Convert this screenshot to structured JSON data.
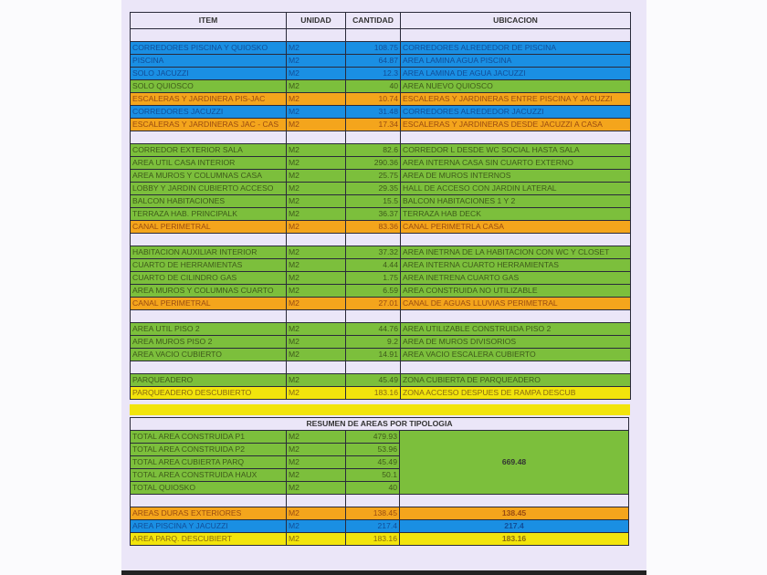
{
  "colors": {
    "blue": "#1a8fe3",
    "green": "#7cbf3c",
    "orange": "#f4a51c",
    "yellow": "#f2e40c"
  },
  "headers": {
    "item": "ITEM",
    "unidad": "UNIDAD",
    "cantidad": "CANTIDAD",
    "ubicacion": "UBICACION"
  },
  "rows": [
    {
      "color": "blank"
    },
    {
      "color": "blue",
      "item": "CORREDORES PISCINA Y QUIOSKO",
      "unidad": "M2",
      "cantidad": "108.75",
      "ubicacion": "CORREDORES ALREDEDOR DE PISCINA"
    },
    {
      "color": "blue",
      "item": "PISCINA",
      "unidad": "M2",
      "cantidad": "64.87",
      "ubicacion": "AREA LAMINA AGUA PISCINA"
    },
    {
      "color": "blue",
      "item": "SOLO JACUZZI",
      "unidad": "M2",
      "cantidad": "12.3",
      "ubicacion": "AREA LAMINA DE AGUA JACUZZI"
    },
    {
      "color": "green",
      "item": "SOLO QUIOSCO",
      "unidad": "M2",
      "cantidad": "40",
      "ubicacion": "AREA NUEVO QUIOSCO"
    },
    {
      "color": "orange",
      "item": "ESCALERAS Y JARDINERA PIS-JAC",
      "unidad": "M2",
      "cantidad": "10.74",
      "ubicacion": "ESCALERAS Y JARDINERAS ENTRE PISCINA Y JACUZZI"
    },
    {
      "color": "blue",
      "item": "CORREDORES JACUZZI",
      "unidad": "M2",
      "cantidad": "31.48",
      "ubicacion": "CORREDORES ALREDEDOR JACUZZI"
    },
    {
      "color": "orange",
      "item": "ESCALERAS Y JARDINERAS JAC - CAS",
      "unidad": "M2",
      "cantidad": "17.34",
      "ubicacion": "ESCALERAS Y JARDINERAS DESDE JACUZZI A CASA"
    },
    {
      "color": "blank"
    },
    {
      "color": "green",
      "item": "CORREDOR EXTERIOR SALA",
      "unidad": "M2",
      "cantidad": "82.6",
      "ubicacion": "CORREDOR L DESDE WC SOCIAL HASTA SALA"
    },
    {
      "color": "green",
      "item": "AREA UTIL CASA INTERIOR",
      "unidad": "M2",
      "cantidad": "290.36",
      "ubicacion": "AREA INTERNA CASA SIN CUARTO EXTERNO"
    },
    {
      "color": "green",
      "item": "AREA MUROS Y COLUMNAS CASA",
      "unidad": "M2",
      "cantidad": "25.75",
      "ubicacion": "AREA DE MUROS INTERNOS"
    },
    {
      "color": "green",
      "item": "LOBBY Y JARDIN CUBIERTO ACCESO",
      "unidad": "M2",
      "cantidad": "29.35",
      "ubicacion": "HALL DE ACCESO CON JARDIN LATERAL"
    },
    {
      "color": "green",
      "item": "BALCON HABITACIONES",
      "unidad": "M2",
      "cantidad": "15.5",
      "ubicacion": "BALCON HABITACIONES 1 Y 2"
    },
    {
      "color": "green",
      "item": "TERRAZA HAB. PRINCIPALK",
      "unidad": "M2",
      "cantidad": "36.37",
      "ubicacion": "TERRAZA HAB DECK"
    },
    {
      "color": "orange",
      "item": "CANAL PERIMETRAL",
      "unidad": "M2",
      "cantidad": "83.36",
      "ubicacion": "CANAL PERIMETRLA CASA"
    },
    {
      "color": "blank"
    },
    {
      "color": "green",
      "item": "HABITACION AUXILIAR INTERIOR",
      "unidad": "M2",
      "cantidad": "37.32",
      "ubicacion": "AREA INETRNA DE LA HABITACION CON WC Y CLOSET"
    },
    {
      "color": "green",
      "item": "CUARTO DE HERRAMIENTAS",
      "unidad": "M2",
      "cantidad": "4.44",
      "ubicacion": "AREA INTERNA CUARTO HERRAMIENTAS"
    },
    {
      "color": "green",
      "item": "CUARTO DE CILINDRO GAS",
      "unidad": "M2",
      "cantidad": "1.75",
      "ubicacion": "AREA INETRENA CUARTO GAS"
    },
    {
      "color": "green",
      "item": "AREA MUROS Y COLUMNAS CUARTO",
      "unidad": "M2",
      "cantidad": "6.59",
      "ubicacion": "AREA CONSTRUIDA NO UTILIZABLE"
    },
    {
      "color": "orange",
      "item": "CANAL PERIMETRAL",
      "unidad": "M2",
      "cantidad": "27.01",
      "ubicacion": "CANAL DE AGUAS LLUVIAS PERIMETRAL"
    },
    {
      "color": "blank"
    },
    {
      "color": "green",
      "item": "AREA UTIL PISO 2",
      "unidad": "M2",
      "cantidad": "44.76",
      "ubicacion": "AREA UTILIZABLE CONSTRUIDA PISO 2"
    },
    {
      "color": "green",
      "item": "AREA MUROS PISO 2",
      "unidad": "M2",
      "cantidad": "9.2",
      "ubicacion": "AREA DE MUROS DIVISORIOS"
    },
    {
      "color": "green",
      "item": "AREA VACIO CUBIERTO",
      "unidad": "M2",
      "cantidad": "14.91",
      "ubicacion": "AREA VACIO ESCALERA CUBIERTO"
    },
    {
      "color": "blank"
    },
    {
      "color": "green",
      "item": "PARQUEADERO",
      "unidad": "M2",
      "cantidad": "45.49",
      "ubicacion": "ZONA CUBIERTA DE PARQUEADERO"
    },
    {
      "color": "yellow",
      "item": "PARQUEADERO DESCUBIERTO",
      "unidad": "M2",
      "cantidad": "183.16",
      "ubicacion": "ZONA ACCESO DESPUES DE RAMPA DESCUB"
    }
  ],
  "summary": {
    "title": "RESUMEN DE AREAS POR TIPOLOGIA",
    "built": {
      "total": "669.48",
      "rows": [
        {
          "item": "TOTAL AREA CONSTRUIDA P1",
          "unidad": "M2",
          "cantidad": "479.93"
        },
        {
          "item": "TOTAL AREA CONSTRUIDA P2",
          "unidad": "M2",
          "cantidad": "53.96"
        },
        {
          "item": "TOTAL AREA CUBIERTA PARQ",
          "unidad": "M2",
          "cantidad": "45.49"
        },
        {
          "item": "TOTAL AREA CONSTRUIDA HAUX",
          "unidad": "M2",
          "cantidad": "50.1"
        },
        {
          "item": "TOTAL QUIOSKO",
          "unidad": "M2",
          "cantidad": "40"
        }
      ]
    },
    "others": [
      {
        "color": "orange",
        "item": "AREAS DURAS EXTERIORES",
        "unidad": "M2",
        "cantidad": "138.45",
        "total": "138.45"
      },
      {
        "color": "blue",
        "item": "AREA PISCINA Y JACUZZI",
        "unidad": "M2",
        "cantidad": "217.4",
        "total": "217.4"
      },
      {
        "color": "yellow",
        "item": "AREA PARQ. DESCUBIERT",
        "unidad": "M2",
        "cantidad": "183.16",
        "total": "183.16"
      }
    ]
  }
}
